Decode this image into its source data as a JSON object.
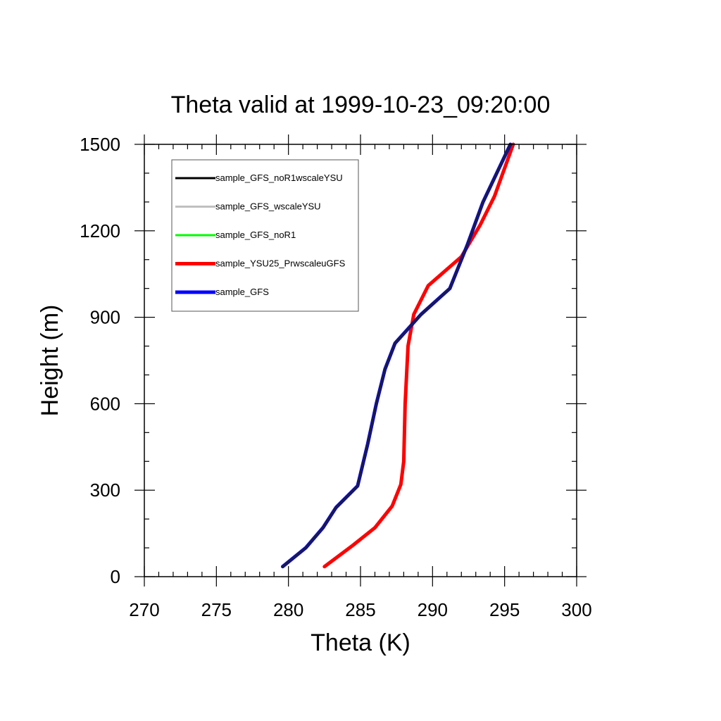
{
  "chart_data": {
    "type": "line",
    "title": "Theta valid at 1999-10-23_09:20:00",
    "xlabel": "Theta (K)",
    "ylabel": "Height (m)",
    "xlim": [
      270,
      300
    ],
    "ylim": [
      0,
      1500
    ],
    "xticks": [
      270,
      275,
      280,
      285,
      290,
      295,
      300
    ],
    "yticks": [
      0,
      300,
      600,
      900,
      1200,
      1500
    ],
    "xtick_labels": [
      "270",
      "275",
      "280",
      "285",
      "290",
      "295",
      "300"
    ],
    "ytick_labels": [
      "0",
      "300",
      "600",
      "900",
      "1200",
      "1500"
    ],
    "grid": false,
    "legend_position": "top-left",
    "series": [
      {
        "name": "sample_GFS_noR1wscaleYSU",
        "color": "#000000",
        "x": [
          279.6,
          281.2,
          282.4,
          283.3,
          284.8,
          285.5,
          286.1,
          286.7,
          287.4,
          289.2,
          291.2,
          292.4,
          293.5,
          295.4
        ],
        "y": [
          35,
          100,
          170,
          240,
          315,
          460,
          600,
          720,
          810,
          910,
          1000,
          1150,
          1300,
          1500
        ]
      },
      {
        "name": "sample_GFS_wscaleYSU",
        "color": "#c0c0c0",
        "x": [
          279.6,
          281.2,
          282.4,
          283.3,
          284.8,
          285.5,
          286.1,
          286.7,
          287.4,
          289.2,
          291.2,
          292.4,
          293.5,
          295.4
        ],
        "y": [
          35,
          100,
          170,
          240,
          315,
          460,
          600,
          720,
          810,
          910,
          1000,
          1150,
          1300,
          1500
        ]
      },
      {
        "name": "sample_GFS_noR1",
        "color": "#00ff00",
        "x": [
          279.6,
          281.2,
          282.4,
          283.3,
          284.8,
          285.5,
          286.1,
          286.7,
          287.4,
          289.2,
          291.2,
          292.4,
          293.5,
          295.4
        ],
        "y": [
          35,
          100,
          170,
          240,
          315,
          460,
          600,
          720,
          810,
          910,
          1000,
          1150,
          1300,
          1500
        ]
      },
      {
        "name": "sample_YSU25_PrwscaleuGFS",
        "color": "#ff0000",
        "x": [
          282.5,
          284.5,
          286.0,
          287.2,
          287.8,
          288.0,
          288.1,
          288.3,
          288.7,
          289.7,
          292.0,
          293.3,
          294.3,
          295.6
        ],
        "y": [
          35,
          110,
          170,
          245,
          320,
          400,
          600,
          800,
          910,
          1010,
          1110,
          1220,
          1320,
          1500
        ]
      },
      {
        "name": "sample_GFS",
        "color": "#0000ff",
        "x": [
          279.6,
          281.2,
          282.4,
          283.3,
          284.8,
          285.5,
          286.1,
          286.7,
          287.4,
          289.2,
          291.2,
          292.4,
          293.5,
          295.4
        ],
        "y": [
          35,
          100,
          170,
          240,
          315,
          460,
          600,
          720,
          810,
          910,
          1000,
          1150,
          1300,
          1500
        ]
      }
    ]
  }
}
